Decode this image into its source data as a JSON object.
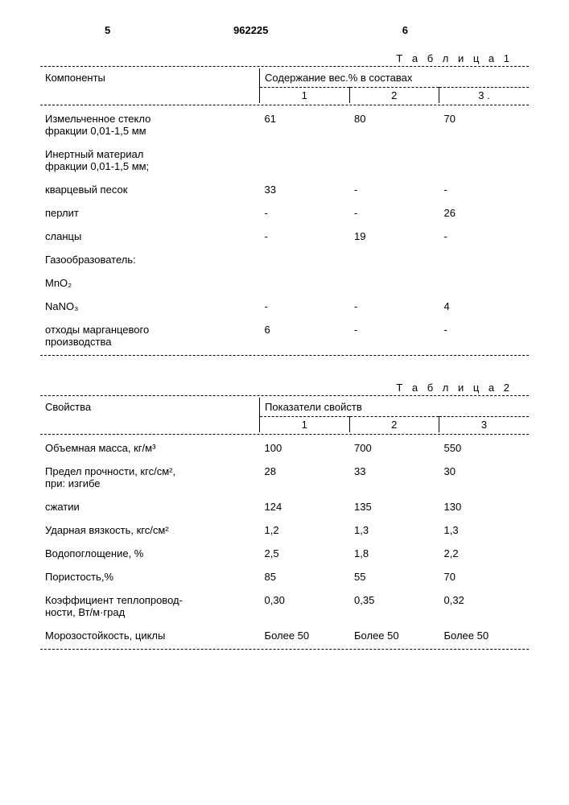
{
  "header": {
    "page_left": "5",
    "doc_number": "962225",
    "page_right": "6"
  },
  "table1": {
    "title": "Т а б л и ц а 1",
    "col_label": "Компоненты",
    "group_header": "Содержание вес.% в составах",
    "col1": "1",
    "col2": "2",
    "col3": "3 .",
    "rows": [
      {
        "label_l1": "Измельченное стекло",
        "label_l2": "фракции 0,01-1,5 мм",
        "v1": "61",
        "v2": "80",
        "v3": "70"
      },
      {
        "section": "Инертный материал",
        "section_l2": "фракции 0,01-1,5 мм;"
      },
      {
        "label": "кварцевый песок",
        "v1": "33",
        "v2": "-",
        "v3": "-",
        "indent": true
      },
      {
        "label": "перлит",
        "v1": "-",
        "v2": "-",
        "v3": "26",
        "indent": true
      },
      {
        "label": "сланцы",
        "v1": "-",
        "v2": "19",
        "v3": "-",
        "indent": true
      },
      {
        "section": "Газообразователь:"
      },
      {
        "label": "MnO₂",
        "v1": "",
        "v2": "",
        "v3": "",
        "indent": true
      },
      {
        "label": "NaNO₃",
        "v1": "-",
        "v2": "-",
        "v3": "4",
        "indent": true
      },
      {
        "label_l1": "отходы марганцевого",
        "label_l2": "производства",
        "v1": "6",
        "v2": "-",
        "v3": "-",
        "indent": true
      }
    ]
  },
  "table2": {
    "title": "Т а б л и ц а 2",
    "col_label": "Свойства",
    "group_header": "Показатели свойств",
    "col1": "1",
    "col2": "2",
    "col3": "3",
    "rows": [
      {
        "label": "Объемная масса, кг/м³",
        "v1": "100",
        "v2": "700",
        "v3": "550"
      },
      {
        "label_l1": "Предел прочности, кгс/см²,",
        "label_l2": "при: изгибе",
        "v1": "28",
        "v2": "33",
        "v3": "30"
      },
      {
        "label": "сжатии",
        "v1": "124",
        "v2": "135",
        "v3": "130",
        "indent": true
      },
      {
        "label": "Ударная вязкость, кгс/см²",
        "v1": "1,2",
        "v2": "1,3",
        "v3": "1,3"
      },
      {
        "label": "Водопоглощение, %",
        "v1": "2,5",
        "v2": "1,8",
        "v3": "2,2"
      },
      {
        "label": "Пористость,%",
        "v1": "85",
        "v2": "55",
        "v3": "70"
      },
      {
        "label_l1": "Коэффициент теплопровод-",
        "label_l2": "ности, Вт/м·град",
        "v1": "0,30",
        "v2": "0,35",
        "v3": "0,32"
      },
      {
        "label": "Морозостойкость, циклы",
        "v1": "Более 50",
        "v2": "Более 50",
        "v3": "Более 50"
      }
    ]
  }
}
